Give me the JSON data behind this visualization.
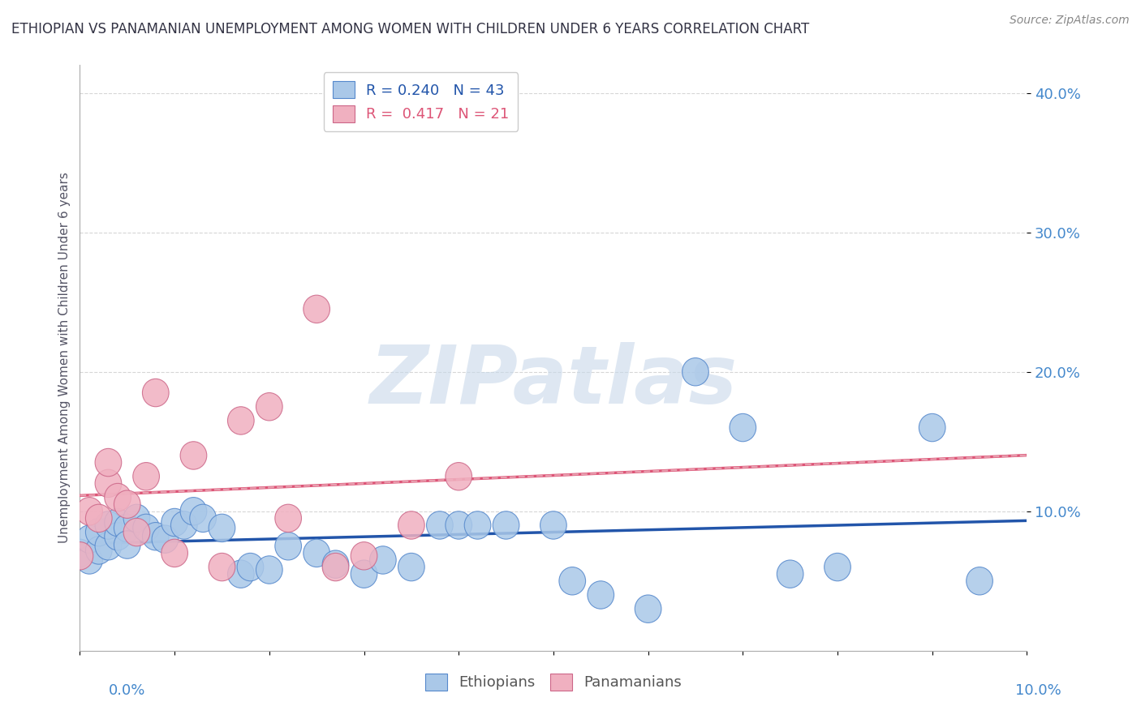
{
  "title": "ETHIOPIAN VS PANAMANIAN UNEMPLOYMENT AMONG WOMEN WITH CHILDREN UNDER 6 YEARS CORRELATION CHART",
  "source": "Source: ZipAtlas.com",
  "ylabel": "Unemployment Among Women with Children Under 6 years",
  "xlim": [
    0.0,
    0.1
  ],
  "ylim": [
    0.0,
    0.42
  ],
  "yticks": [
    0.1,
    0.2,
    0.3,
    0.4
  ],
  "ytick_labels": [
    "10.0%",
    "20.0%",
    "30.0%",
    "40.0%"
  ],
  "color_ethiopian_fill": "#aac8e8",
  "color_ethiopian_edge": "#5588cc",
  "color_panamanian_fill": "#f0b0c0",
  "color_panamanian_edge": "#cc6688",
  "color_line_ethiopian": "#2255aa",
  "color_line_panamanian": "#dd5577",
  "color_line_panamanian_dashed": "#e8a0b0",
  "color_title": "#333344",
  "color_ytick": "#4488cc",
  "color_xtick": "#4488cc",
  "color_watermark": "#c8d8ea",
  "background_color": "#ffffff",
  "ethiopian_x": [
    0.0,
    0.001,
    0.001,
    0.002,
    0.002,
    0.003,
    0.003,
    0.004,
    0.004,
    0.005,
    0.005,
    0.006,
    0.007,
    0.008,
    0.009,
    0.01,
    0.011,
    0.012,
    0.013,
    0.015,
    0.017,
    0.018,
    0.02,
    0.022,
    0.025,
    0.027,
    0.03,
    0.032,
    0.035,
    0.038,
    0.04,
    0.042,
    0.045,
    0.05,
    0.052,
    0.055,
    0.06,
    0.065,
    0.07,
    0.075,
    0.08,
    0.09,
    0.095
  ],
  "ethiopian_y": [
    0.07,
    0.065,
    0.08,
    0.072,
    0.085,
    0.075,
    0.09,
    0.082,
    0.092,
    0.088,
    0.076,
    0.095,
    0.088,
    0.082,
    0.08,
    0.092,
    0.09,
    0.1,
    0.095,
    0.088,
    0.055,
    0.06,
    0.058,
    0.075,
    0.07,
    0.062,
    0.055,
    0.065,
    0.06,
    0.09,
    0.09,
    0.09,
    0.09,
    0.09,
    0.05,
    0.04,
    0.03,
    0.2,
    0.16,
    0.055,
    0.06,
    0.16,
    0.05
  ],
  "panamanian_x": [
    0.0,
    0.001,
    0.002,
    0.003,
    0.003,
    0.004,
    0.005,
    0.006,
    0.007,
    0.008,
    0.01,
    0.012,
    0.015,
    0.017,
    0.02,
    0.022,
    0.025,
    0.027,
    0.03,
    0.035,
    0.04
  ],
  "panamanian_y": [
    0.068,
    0.1,
    0.095,
    0.12,
    0.135,
    0.11,
    0.105,
    0.085,
    0.125,
    0.185,
    0.07,
    0.14,
    0.06,
    0.165,
    0.175,
    0.095,
    0.245,
    0.06,
    0.068,
    0.09,
    0.125
  ]
}
